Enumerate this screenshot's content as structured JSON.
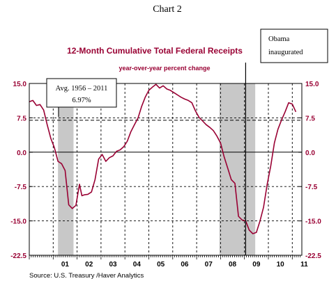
{
  "heading": "Chart 2",
  "source": "Source:  U.S. Treasury /Haver Analytics",
  "chart_data": {
    "type": "line",
    "title": "12-Month Cumulative Total Federal Receipts",
    "subtitle": "year-over-year percent change",
    "ylim": [
      -22.5,
      15.0
    ],
    "yticks": [
      15.0,
      7.5,
      0.0,
      -7.5,
      -15.0,
      -22.5
    ],
    "ytick_labels": [
      "15.0",
      "7.5",
      "0.0",
      "-7.5",
      "-15.0",
      "-22.5"
    ],
    "xlim": [
      2000.0,
      2011.4
    ],
    "xtick_labels": [
      "01",
      "02",
      "03",
      "04",
      "05",
      "06",
      "07",
      "08",
      "09",
      "10",
      "11"
    ],
    "x": [
      2000.0,
      2000.15,
      2000.3,
      2000.45,
      2000.6,
      2000.75,
      2000.9,
      2001.05,
      2001.2,
      2001.35,
      2001.5,
      2001.65,
      2001.8,
      2001.95,
      2002.1,
      2002.2,
      2002.3,
      2002.45,
      2002.6,
      2002.75,
      2002.9,
      2003.05,
      2003.2,
      2003.35,
      2003.5,
      2003.65,
      2003.8,
      2003.95,
      2004.1,
      2004.25,
      2004.4,
      2004.55,
      2004.7,
      2004.85,
      2005.0,
      2005.15,
      2005.3,
      2005.45,
      2005.6,
      2005.75,
      2005.9,
      2006.05,
      2006.2,
      2006.35,
      2006.5,
      2006.65,
      2006.8,
      2006.95,
      2007.1,
      2007.25,
      2007.4,
      2007.55,
      2007.7,
      2007.85,
      2008.0,
      2008.15,
      2008.3,
      2008.45,
      2008.6,
      2008.75,
      2008.9,
      2009.05,
      2009.2,
      2009.35,
      2009.5,
      2009.65,
      2009.8,
      2009.95,
      2010.1,
      2010.25,
      2010.4,
      2010.55,
      2010.7,
      2010.85,
      2011.0,
      2011.15
    ],
    "series": [
      {
        "color": "#990033",
        "values": [
          11.0,
          11.3,
          10.2,
          10.4,
          9.2,
          6.0,
          3.0,
          1.0,
          -2.0,
          -2.5,
          -4.0,
          -11.5,
          -12.3,
          -11.6,
          -7.0,
          -9.5,
          -9.3,
          -9.2,
          -8.7,
          -6.0,
          -1.5,
          -0.5,
          -2.0,
          -1.2,
          -0.8,
          0.2,
          0.5,
          1.2,
          2.4,
          4.5,
          6.0,
          7.5,
          10.0,
          12.0,
          13.5,
          14.2,
          14.8,
          14.0,
          14.5,
          13.8,
          13.5,
          13.0,
          12.5,
          12.0,
          11.6,
          11.3,
          10.8,
          9.0,
          7.6,
          6.8,
          6.0,
          5.4,
          4.7,
          3.5,
          2.0,
          -1.0,
          -3.5,
          -6.0,
          -6.8,
          -14.0,
          -14.8,
          -15.0,
          -17.0,
          -17.8,
          -17.5,
          -15.0,
          -12.0,
          -7.0,
          -3.0,
          2.0,
          5.0,
          7.0,
          8.8,
          10.8,
          10.5,
          8.8
        ]
      }
    ],
    "reference_lines": [
      {
        "value": 6.97,
        "style": "dashed"
      }
    ],
    "recessions": [
      {
        "start": 2001.2,
        "end": 2001.85
      },
      {
        "start": 2007.95,
        "end": 2009.45
      }
    ],
    "event_line": {
      "x": 2009.05
    },
    "annotations": [
      {
        "id": "avg",
        "lines": [
          "Avg. 1956 – 2011",
          "6.97%"
        ]
      },
      {
        "id": "obama",
        "lines": [
          "Obama",
          "inaugurated"
        ]
      }
    ],
    "grid": true,
    "recession_color": "#c8c8c8",
    "grid_color": "#000000"
  }
}
